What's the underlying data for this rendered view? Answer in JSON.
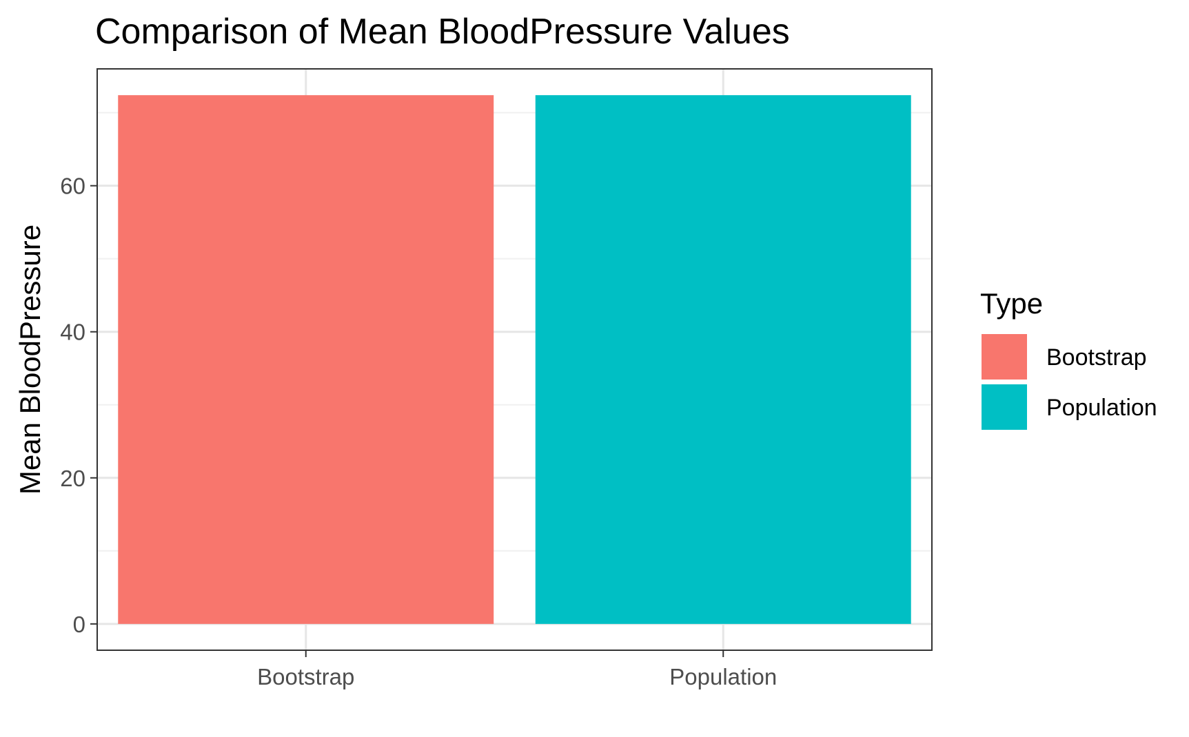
{
  "chart_data": {
    "type": "bar",
    "title": "Comparison of Mean BloodPressure Values",
    "xlabel": "",
    "ylabel": "Mean BloodPressure",
    "categories": [
      "Bootstrap",
      "Population"
    ],
    "values": [
      72.4,
      72.4
    ],
    "colors": [
      "#F8766D",
      "#00BFC4"
    ],
    "ylim": [
      -3.6,
      76.0
    ],
    "y_ticks": [
      0,
      20,
      40,
      60
    ],
    "y_minor_ticks": [
      10,
      30,
      50,
      70
    ],
    "grid": true,
    "legend": {
      "title": "Type",
      "position": "right",
      "items": [
        {
          "label": "Bootstrap",
          "color": "#F8766D"
        },
        {
          "label": "Population",
          "color": "#00BFC4"
        }
      ]
    }
  }
}
